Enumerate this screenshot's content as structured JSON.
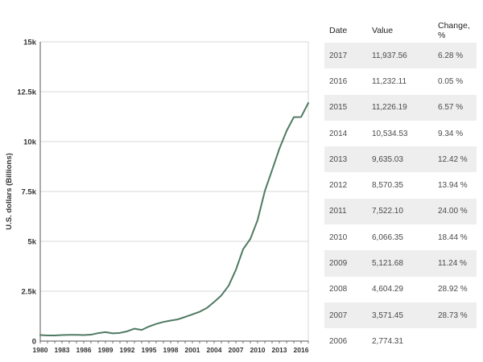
{
  "chart_data": {
    "type": "line",
    "title": "",
    "xlabel": "",
    "ylabel": "U.S. dollars (Billions)",
    "xlim": [
      1980,
      2017
    ],
    "ylim": [
      0,
      15000
    ],
    "y_ticks": [
      {
        "value": 0,
        "label": "0"
      },
      {
        "value": 2500,
        "label": "2.5k"
      },
      {
        "value": 5000,
        "label": "5k"
      },
      {
        "value": 7500,
        "label": "7.5k"
      },
      {
        "value": 10000,
        "label": "10k"
      },
      {
        "value": 12500,
        "label": "12.5k"
      },
      {
        "value": 15000,
        "label": "15k"
      }
    ],
    "x_ticks": [
      1980,
      1983,
      1986,
      1989,
      1992,
      1995,
      1998,
      2001,
      2004,
      2007,
      2010,
      2013,
      2016
    ],
    "grid": true,
    "line_color": "#4f7a63",
    "series": [
      {
        "x": [
          1980,
          1981,
          1982,
          1983,
          1984,
          1985,
          1986,
          1987,
          1988,
          1989,
          1990,
          1991,
          1992,
          1993,
          1994,
          1995,
          1996,
          1997,
          1998,
          1999,
          2000,
          2001,
          2002,
          2003,
          2004,
          2005,
          2006,
          2007,
          2008,
          2009,
          2010,
          2011,
          2012,
          2013,
          2014,
          2015,
          2016,
          2017
        ],
        "y": [
          300,
          280,
          280,
          300,
          310,
          310,
          300,
          320,
          400,
          450,
          390,
          410,
          490,
          620,
          560,
          730,
          860,
          960,
          1030,
          1090,
          1210,
          1340,
          1470,
          1660,
          1960,
          2290,
          2774.31,
          3571.45,
          4604.29,
          5121.68,
          6066.35,
          7522.1,
          8570.35,
          9635.03,
          10534.53,
          11226.19,
          11232.11,
          11937.56
        ]
      }
    ]
  },
  "table": {
    "headers": {
      "date": "Date",
      "value": "Value",
      "change": "Change, %"
    },
    "rows": [
      {
        "date": "2017",
        "value": "11,937.56",
        "change": "6.28 %"
      },
      {
        "date": "2016",
        "value": "11,232.11",
        "change": "0.05 %"
      },
      {
        "date": "2015",
        "value": "11,226.19",
        "change": "6.57 %"
      },
      {
        "date": "2014",
        "value": "10,534.53",
        "change": "9.34 %"
      },
      {
        "date": "2013",
        "value": "9,635.03",
        "change": "12.42 %"
      },
      {
        "date": "2012",
        "value": "8,570.35",
        "change": "13.94 %"
      },
      {
        "date": "2011",
        "value": "7,522.10",
        "change": "24.00 %"
      },
      {
        "date": "2010",
        "value": "6,066.35",
        "change": "18.44 %"
      },
      {
        "date": "2009",
        "value": "5,121.68",
        "change": "11.24 %"
      },
      {
        "date": "2008",
        "value": "4,604.29",
        "change": "28.92 %"
      },
      {
        "date": "2007",
        "value": "3,571.45",
        "change": "28.73 %"
      },
      {
        "date": "2006",
        "value": "2,774.31",
        "change": ""
      }
    ]
  }
}
